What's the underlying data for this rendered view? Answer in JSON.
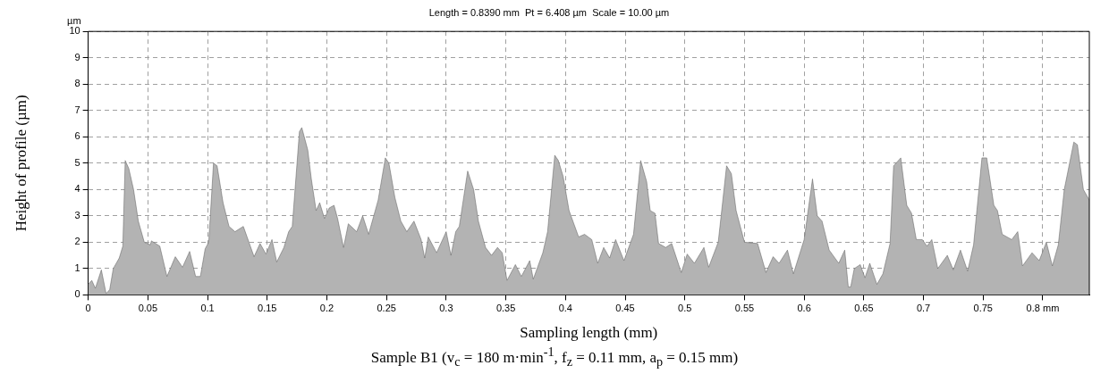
{
  "chart_data": {
    "type": "area",
    "title": "Length = 0.8390 mm  Pt = 6.408 µm  Scale = 10.00 µm",
    "xlabel": "Sampling length (mm)",
    "ylabel": "Height of profile (µm)",
    "annotations": [
      "µm",
      "Sample B1 (v$_{c}$ = 180 m·min$^{-1}$, f$_{z}$ = 0.11 mm, a$_{p}$ = 0.15 mm)"
    ],
    "series": [
      {
        "color": "#b3b3b3",
        "x": [
          0,
          0.003,
          0.006,
          0.011,
          0.015,
          0.018,
          0.021,
          0.026,
          0.029,
          0.031,
          0.034,
          0.038,
          0.042,
          0.047,
          0.052,
          0.053,
          0.06,
          0.066,
          0.073,
          0.079,
          0.085,
          0.09,
          0.094,
          0.098,
          0.101,
          0.105,
          0.108,
          0.113,
          0.118,
          0.123,
          0.13,
          0.139,
          0.144,
          0.149,
          0.154,
          0.158,
          0.164,
          0.168,
          0.171,
          0.177,
          0.179,
          0.184,
          0.187,
          0.191,
          0.194,
          0.198,
          0.202,
          0.206,
          0.209,
          0.214,
          0.218,
          0.225,
          0.23,
          0.235,
          0.243,
          0.249,
          0.252,
          0.257,
          0.262,
          0.267,
          0.273,
          0.279,
          0.282,
          0.285,
          0.292,
          0.3,
          0.304,
          0.308,
          0.311,
          0.318,
          0.323,
          0.327,
          0.333,
          0.338,
          0.343,
          0.347,
          0.351,
          0.358,
          0.363,
          0.37,
          0.373,
          0.381,
          0.385,
          0.391,
          0.394,
          0.398,
          0.403,
          0.411,
          0.416,
          0.422,
          0.427,
          0.432,
          0.437,
          0.442,
          0.449,
          0.457,
          0.463,
          0.468,
          0.471,
          0.475,
          0.478,
          0.484,
          0.489,
          0.497,
          0.502,
          0.508,
          0.516,
          0.52,
          0.528,
          0.535,
          0.539,
          0.543,
          0.55,
          0.561,
          0.568,
          0.574,
          0.579,
          0.586,
          0.591,
          0.6,
          0.607,
          0.611,
          0.615,
          0.621,
          0.629,
          0.634,
          0.637,
          0.639,
          0.642,
          0.647,
          0.651,
          0.655,
          0.661,
          0.666,
          0.672,
          0.675,
          0.681,
          0.686,
          0.69,
          0.694,
          0.699,
          0.703,
          0.707,
          0.712,
          0.72,
          0.725,
          0.731,
          0.737,
          0.742,
          0.749,
          0.753,
          0.759,
          0.762,
          0.766,
          0.774,
          0.779,
          0.783,
          0.791,
          0.797,
          0.803,
          0.808,
          0.813,
          0.818,
          0.826,
          0.829,
          0.834,
          0.839
        ],
        "values": [
          0.4,
          0.55,
          0.25,
          0.95,
          0.05,
          0.2,
          1.0,
          1.4,
          1.85,
          5.1,
          4.8,
          4.0,
          2.8,
          2.0,
          1.9,
          2.05,
          1.85,
          0.7,
          1.45,
          1.05,
          1.65,
          0.7,
          0.7,
          1.75,
          2.0,
          5.0,
          4.9,
          3.5,
          2.6,
          2.4,
          2.6,
          1.45,
          1.95,
          1.55,
          2.1,
          1.25,
          1.8,
          2.4,
          2.6,
          6.2,
          6.35,
          5.5,
          4.4,
          3.2,
          3.5,
          2.9,
          3.3,
          3.4,
          2.9,
          1.8,
          2.7,
          2.4,
          3.0,
          2.3,
          3.6,
          5.2,
          5.0,
          3.7,
          2.8,
          2.4,
          2.8,
          2.1,
          1.4,
          2.2,
          1.6,
          2.4,
          1.5,
          2.4,
          2.6,
          4.7,
          4.0,
          2.8,
          1.8,
          1.5,
          1.8,
          1.6,
          0.55,
          1.15,
          0.7,
          1.3,
          0.6,
          1.6,
          2.4,
          5.3,
          5.1,
          4.5,
          3.2,
          2.2,
          2.3,
          2.1,
          1.2,
          1.8,
          1.4,
          2.1,
          1.3,
          2.3,
          5.1,
          4.3,
          3.2,
          3.1,
          1.95,
          1.8,
          1.95,
          0.85,
          1.55,
          1.2,
          1.8,
          1.05,
          2.0,
          4.9,
          4.6,
          3.2,
          2.0,
          1.95,
          0.85,
          1.45,
          1.2,
          1.7,
          0.8,
          2.1,
          4.4,
          3.0,
          2.8,
          1.7,
          1.2,
          1.7,
          0.3,
          0.3,
          1.0,
          1.15,
          0.65,
          1.2,
          0.4,
          0.8,
          1.95,
          4.9,
          5.2,
          3.4,
          3.1,
          2.1,
          2.1,
          1.85,
          2.1,
          1.0,
          1.5,
          0.95,
          1.7,
          0.9,
          1.9,
          5.2,
          5.2,
          3.4,
          3.2,
          2.3,
          2.1,
          2.4,
          1.1,
          1.6,
          1.3,
          2.0,
          1.1,
          1.9,
          4.0,
          5.8,
          5.7,
          4.0,
          3.6
        ]
      }
    ],
    "xlim": [
      0,
      0.839
    ],
    "xticks": [
      0,
      0.05,
      0.1,
      0.15,
      0.2,
      0.25,
      0.3,
      0.35,
      0.4,
      0.45,
      0.5,
      0.55,
      0.6,
      0.65,
      0.7,
      0.75,
      {
        "value": 0.8,
        "label": "0.8 mm"
      }
    ],
    "ylim": [
      0,
      10
    ],
    "yticks": [
      0,
      1,
      2,
      3,
      4,
      5,
      6,
      7,
      8,
      9,
      10
    ],
    "grid": true,
    "legend": false,
    "line_style": "dashed"
  }
}
